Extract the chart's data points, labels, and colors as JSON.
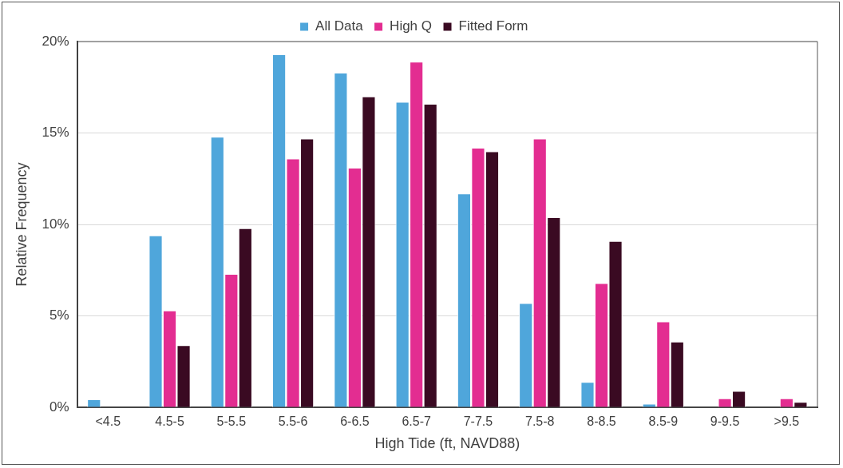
{
  "chart_data": {
    "type": "bar",
    "xlabel": "High Tide (ft, NAVD88)",
    "ylabel": "Relative Frequency",
    "categories": [
      "<4.5",
      "4.5-5",
      "5-5.5",
      "5.5-6",
      "6-6.5",
      "6.5-7",
      "7-7.5",
      "7.5-8",
      "8-8.5",
      "8.5-9",
      "9-9.5",
      ">9.5"
    ],
    "series": [
      {
        "name": "All Data",
        "color": "#4fa6db",
        "values": [
          0.45,
          9.4,
          14.8,
          19.3,
          18.3,
          16.7,
          11.7,
          5.7,
          1.4,
          0.2,
          0,
          0
        ]
      },
      {
        "name": "High Q",
        "color": "#e32d91",
        "values": [
          0,
          5.3,
          7.3,
          13.6,
          13.1,
          18.9,
          14.2,
          14.7,
          6.8,
          4.7,
          0.5,
          0.5
        ]
      },
      {
        "name": "Fitted Form",
        "color": "#3a0a22",
        "values": [
          0,
          3.4,
          9.8,
          14.7,
          17.0,
          16.6,
          14.0,
          10.4,
          9.1,
          3.6,
          0.9,
          0.3
        ]
      }
    ],
    "ylim": [
      0,
      20
    ],
    "yticks": [
      {
        "value": 0,
        "label": "0%"
      },
      {
        "value": 5,
        "label": "5%"
      },
      {
        "value": 10,
        "label": "10%"
      },
      {
        "value": 15,
        "label": "15%"
      },
      {
        "value": 20,
        "label": "20%"
      }
    ],
    "grid": "y",
    "legend": "top"
  }
}
